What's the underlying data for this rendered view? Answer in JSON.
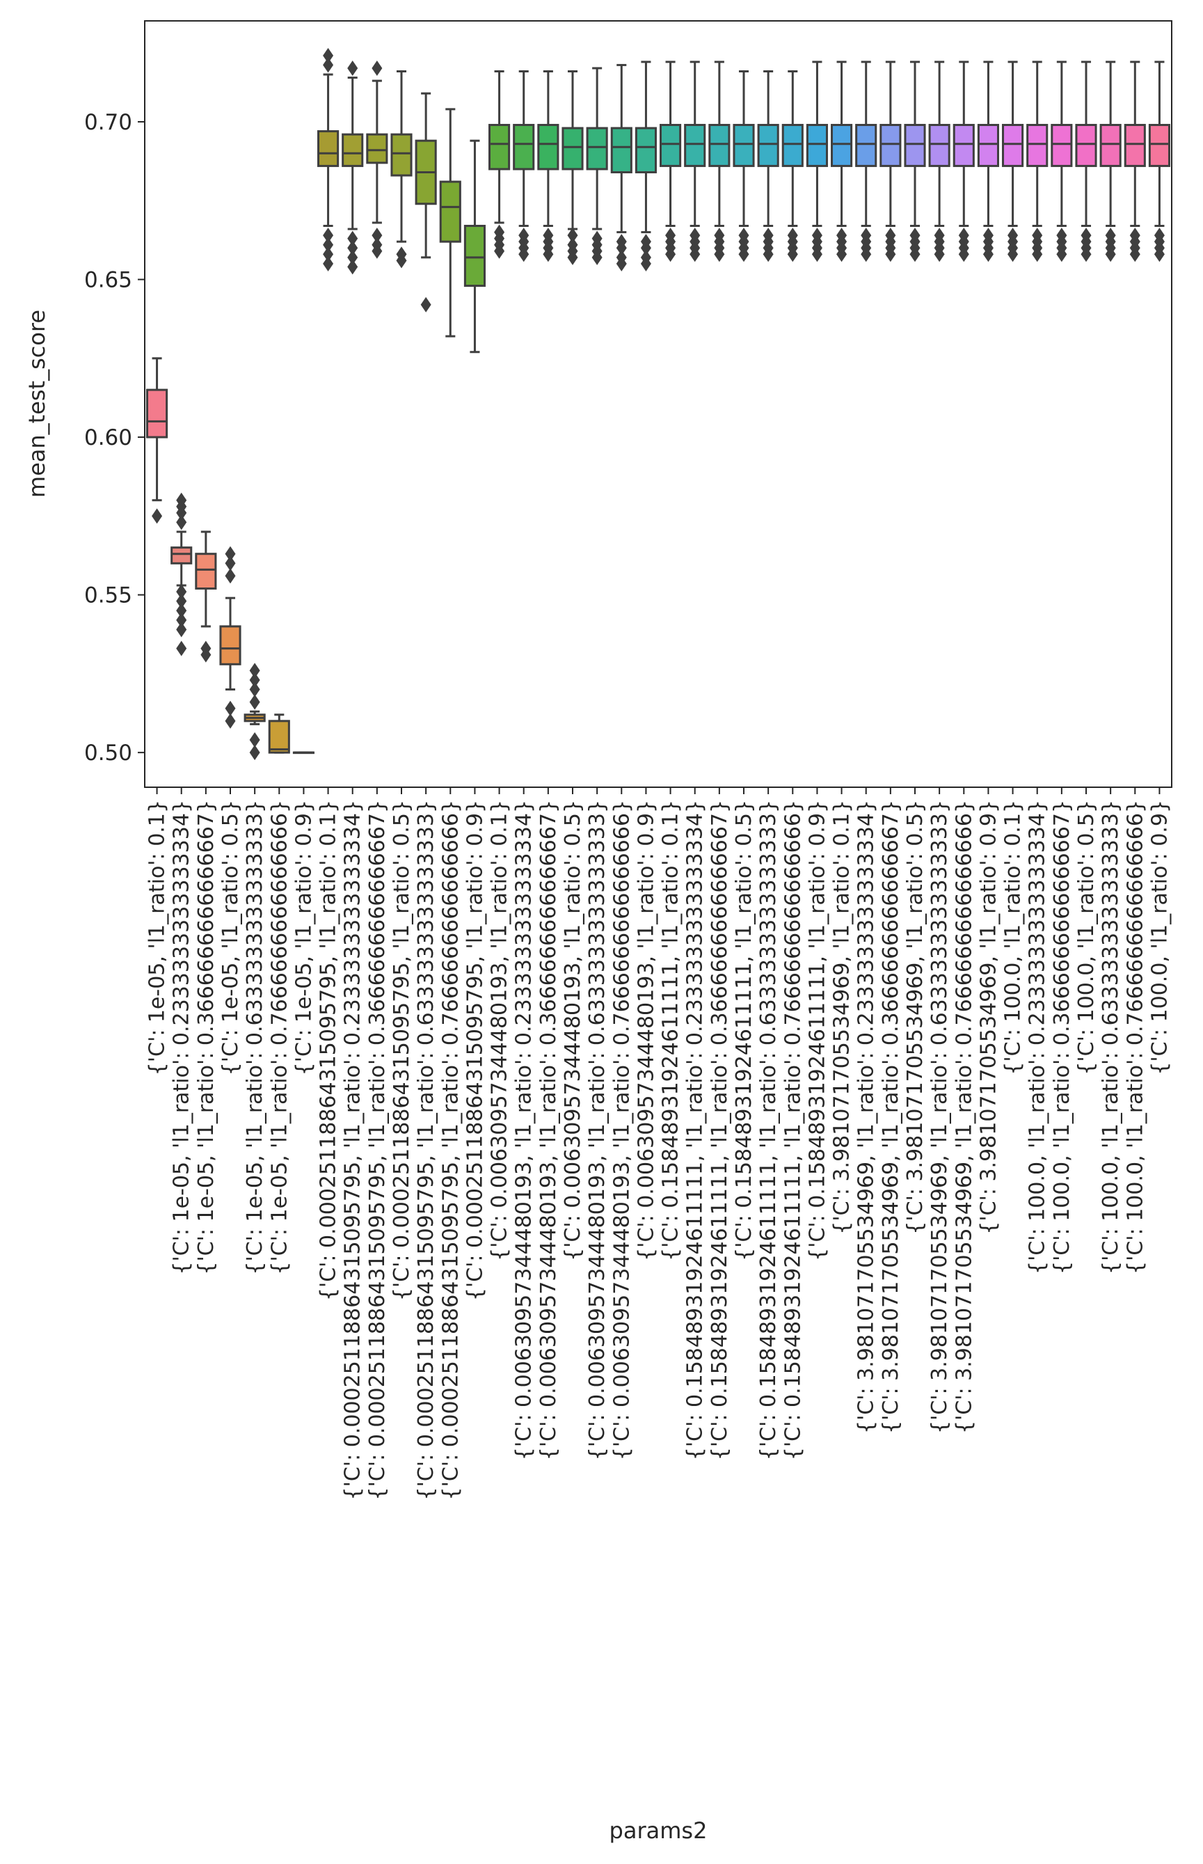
{
  "chart_data": {
    "type": "box",
    "title": "",
    "xlabel": "params2",
    "ylabel": "mean_test_score",
    "ylim": [
      0.489,
      0.732
    ],
    "yticks": [
      "0.50",
      "0.55",
      "0.60",
      "0.65",
      "0.70"
    ],
    "ytick_values": [
      0.5,
      0.55,
      0.6,
      0.65,
      0.7
    ],
    "grid": false,
    "legend": "none",
    "categories": [
      "{'C': 1e-05, 'l1_ratio': 0.1}",
      "{'C': 1e-05, 'l1_ratio': 0.2333333333333334}",
      "{'C': 1e-05, 'l1_ratio': 0.3666666666666667}",
      "{'C': 1e-05, 'l1_ratio': 0.5}",
      "{'C': 1e-05, 'l1_ratio': 0.6333333333333333}",
      "{'C': 1e-05, 'l1_ratio': 0.7666666666666666}",
      "{'C': 1e-05, 'l1_ratio': 0.9}",
      "{'C': 0.00025118864315095795, 'l1_ratio': 0.1}",
      "{'C': 0.00025118864315095795, 'l1_ratio': 0.2333333333333334}",
      "{'C': 0.00025118864315095795, 'l1_ratio': 0.3666666666666667}",
      "{'C': 0.00025118864315095795, 'l1_ratio': 0.5}",
      "{'C': 0.00025118864315095795, 'l1_ratio': 0.6333333333333333}",
      "{'C': 0.00025118864315095795, 'l1_ratio': 0.7666666666666666}",
      "{'C': 0.00025118864315095795, 'l1_ratio': 0.9}",
      "{'C': 0.00630957344480193, 'l1_ratio': 0.1}",
      "{'C': 0.00630957344480193, 'l1_ratio': 0.2333333333333334}",
      "{'C': 0.00630957344480193, 'l1_ratio': 0.3666666666666667}",
      "{'C': 0.00630957344480193, 'l1_ratio': 0.5}",
      "{'C': 0.00630957344480193, 'l1_ratio': 0.6333333333333333}",
      "{'C': 0.00630957344480193, 'l1_ratio': 0.7666666666666666}",
      "{'C': 0.00630957344480193, 'l1_ratio': 0.9}",
      "{'C': 0.15848931924611111, 'l1_ratio': 0.1}",
      "{'C': 0.15848931924611111, 'l1_ratio': 0.2333333333333334}",
      "{'C': 0.15848931924611111, 'l1_ratio': 0.3666666666666667}",
      "{'C': 0.15848931924611111, 'l1_ratio': 0.5}",
      "{'C': 0.15848931924611111, 'l1_ratio': 0.6333333333333333}",
      "{'C': 0.15848931924611111, 'l1_ratio': 0.7666666666666666}",
      "{'C': 0.15848931924611111, 'l1_ratio': 0.9}",
      "{'C': 3.981071705534969, 'l1_ratio': 0.1}",
      "{'C': 3.981071705534969, 'l1_ratio': 0.2333333333333334}",
      "{'C': 3.981071705534969, 'l1_ratio': 0.3666666666666667}",
      "{'C': 3.981071705534969, 'l1_ratio': 0.5}",
      "{'C': 3.981071705534969, 'l1_ratio': 0.6333333333333333}",
      "{'C': 3.981071705534969, 'l1_ratio': 0.7666666666666666}",
      "{'C': 3.981071705534969, 'l1_ratio': 0.9}",
      "{'C': 100.0, 'l1_ratio': 0.1}",
      "{'C': 100.0, 'l1_ratio': 0.2333333333333334}",
      "{'C': 100.0, 'l1_ratio': 0.3666666666666667}",
      "{'C': 100.0, 'l1_ratio': 0.5}",
      "{'C': 100.0, 'l1_ratio': 0.6333333333333333}",
      "{'C': 100.0, 'l1_ratio': 0.7666666666666666}",
      "{'C': 100.0, 'l1_ratio': 0.9}"
    ],
    "colors": [
      "#f37b8c",
      "#e8857c",
      "#f08c72",
      "#e6914f",
      "#d39a3a",
      "#c99e36",
      "#b49a33",
      "#a69b32",
      "#a19f33",
      "#9aa131",
      "#93a333",
      "#88a532",
      "#7aa832",
      "#6aaa38",
      "#5bae3f",
      "#4bb04f",
      "#3ab25f",
      "#36b16e",
      "#36b27b",
      "#36b287",
      "#37b292",
      "#37b29e",
      "#38b2a8",
      "#39b1b2",
      "#3ab0bc",
      "#3aaec5",
      "#3babcf",
      "#3da8d9",
      "#4ba3e2",
      "#6a9ee8",
      "#869aec",
      "#9d95ef",
      "#b08ff1",
      "#c289f1",
      "#d282ef",
      "#de7be9",
      "#e776e0",
      "#ee72d4",
      "#f170c6",
      "#f271b8",
      "#f373aa",
      "#f4769c"
    ],
    "boxes": [
      {
        "whislo": 0.58,
        "q1": 0.6,
        "med": 0.605,
        "q3": 0.615,
        "whishi": 0.625,
        "fliers": [
          0.575
        ]
      },
      {
        "whislo": 0.553,
        "q1": 0.56,
        "med": 0.563,
        "q3": 0.565,
        "whishi": 0.57,
        "fliers": [
          0.551,
          0.548,
          0.545,
          0.542,
          0.539,
          0.533,
          0.573,
          0.576,
          0.578,
          0.58
        ]
      },
      {
        "whislo": 0.54,
        "q1": 0.552,
        "med": 0.558,
        "q3": 0.563,
        "whishi": 0.57,
        "fliers": [
          0.533,
          0.531
        ]
      },
      {
        "whislo": 0.52,
        "q1": 0.528,
        "med": 0.533,
        "q3": 0.54,
        "whishi": 0.549,
        "fliers": [
          0.514,
          0.51,
          0.556,
          0.56,
          0.563
        ]
      },
      {
        "whislo": 0.509,
        "q1": 0.51,
        "med": 0.511,
        "q3": 0.512,
        "whishi": 0.513,
        "fliers": [
          0.504,
          0.5,
          0.516,
          0.52,
          0.523,
          0.526
        ]
      },
      {
        "whislo": 0.5,
        "q1": 0.5,
        "med": 0.501,
        "q3": 0.51,
        "whishi": 0.512,
        "fliers": []
      },
      {
        "whislo": 0.5,
        "q1": 0.5,
        "med": 0.5,
        "q3": 0.5,
        "whishi": 0.5,
        "fliers": []
      },
      {
        "whislo": 0.667,
        "q1": 0.686,
        "med": 0.69,
        "q3": 0.697,
        "whishi": 0.715,
        "fliers": [
          0.664,
          0.661,
          0.658,
          0.655,
          0.718,
          0.721
        ]
      },
      {
        "whislo": 0.666,
        "q1": 0.686,
        "med": 0.69,
        "q3": 0.696,
        "whishi": 0.714,
        "fliers": [
          0.663,
          0.66,
          0.657,
          0.654,
          0.717
        ]
      },
      {
        "whislo": 0.668,
        "q1": 0.687,
        "med": 0.691,
        "q3": 0.696,
        "whishi": 0.713,
        "fliers": [
          0.664,
          0.661,
          0.659,
          0.717
        ]
      },
      {
        "whislo": 0.662,
        "q1": 0.683,
        "med": 0.69,
        "q3": 0.696,
        "whishi": 0.716,
        "fliers": [
          0.658,
          0.656
        ]
      },
      {
        "whislo": 0.657,
        "q1": 0.674,
        "med": 0.684,
        "q3": 0.694,
        "whishi": 0.709,
        "fliers": [
          0.642
        ]
      },
      {
        "whislo": 0.632,
        "q1": 0.662,
        "med": 0.673,
        "q3": 0.681,
        "whishi": 0.704,
        "fliers": []
      },
      {
        "whislo": 0.627,
        "q1": 0.648,
        "med": 0.657,
        "q3": 0.667,
        "whishi": 0.694,
        "fliers": []
      },
      {
        "whislo": 0.668,
        "q1": 0.685,
        "med": 0.693,
        "q3": 0.699,
        "whishi": 0.716,
        "fliers": [
          0.665,
          0.663,
          0.661,
          0.659
        ]
      },
      {
        "whislo": 0.667,
        "q1": 0.685,
        "med": 0.693,
        "q3": 0.699,
        "whishi": 0.716,
        "fliers": [
          0.664,
          0.662,
          0.66,
          0.658
        ]
      },
      {
        "whislo": 0.667,
        "q1": 0.685,
        "med": 0.693,
        "q3": 0.699,
        "whishi": 0.716,
        "fliers": [
          0.664,
          0.662,
          0.66,
          0.658
        ]
      },
      {
        "whislo": 0.666,
        "q1": 0.685,
        "med": 0.692,
        "q3": 0.698,
        "whishi": 0.716,
        "fliers": [
          0.664,
          0.661,
          0.659,
          0.657
        ]
      },
      {
        "whislo": 0.666,
        "q1": 0.685,
        "med": 0.692,
        "q3": 0.698,
        "whishi": 0.717,
        "fliers": [
          0.663,
          0.661,
          0.659,
          0.657
        ]
      },
      {
        "whislo": 0.665,
        "q1": 0.684,
        "med": 0.692,
        "q3": 0.698,
        "whishi": 0.718,
        "fliers": [
          0.662,
          0.66,
          0.657,
          0.655
        ]
      },
      {
        "whislo": 0.665,
        "q1": 0.684,
        "med": 0.692,
        "q3": 0.698,
        "whishi": 0.719,
        "fliers": [
          0.662,
          0.66,
          0.657,
          0.655
        ]
      },
      {
        "whislo": 0.667,
        "q1": 0.686,
        "med": 0.693,
        "q3": 0.699,
        "whishi": 0.719,
        "fliers": [
          0.664,
          0.662,
          0.66,
          0.658
        ]
      },
      {
        "whislo": 0.667,
        "q1": 0.686,
        "med": 0.693,
        "q3": 0.699,
        "whishi": 0.719,
        "fliers": [
          0.664,
          0.662,
          0.66,
          0.658
        ]
      },
      {
        "whislo": 0.667,
        "q1": 0.686,
        "med": 0.693,
        "q3": 0.699,
        "whishi": 0.719,
        "fliers": [
          0.664,
          0.662,
          0.66,
          0.658
        ]
      },
      {
        "whislo": 0.667,
        "q1": 0.686,
        "med": 0.693,
        "q3": 0.699,
        "whishi": 0.716,
        "fliers": [
          0.664,
          0.662,
          0.66,
          0.658
        ]
      },
      {
        "whislo": 0.667,
        "q1": 0.686,
        "med": 0.693,
        "q3": 0.699,
        "whishi": 0.716,
        "fliers": [
          0.664,
          0.662,
          0.66,
          0.658
        ]
      },
      {
        "whislo": 0.667,
        "q1": 0.686,
        "med": 0.693,
        "q3": 0.699,
        "whishi": 0.716,
        "fliers": [
          0.664,
          0.662,
          0.66,
          0.658
        ]
      },
      {
        "whislo": 0.667,
        "q1": 0.686,
        "med": 0.693,
        "q3": 0.699,
        "whishi": 0.719,
        "fliers": [
          0.664,
          0.662,
          0.66,
          0.658
        ]
      },
      {
        "whislo": 0.667,
        "q1": 0.686,
        "med": 0.693,
        "q3": 0.699,
        "whishi": 0.719,
        "fliers": [
          0.664,
          0.662,
          0.66,
          0.658
        ]
      },
      {
        "whislo": 0.667,
        "q1": 0.686,
        "med": 0.693,
        "q3": 0.699,
        "whishi": 0.719,
        "fliers": [
          0.664,
          0.662,
          0.66,
          0.658
        ]
      },
      {
        "whislo": 0.667,
        "q1": 0.686,
        "med": 0.693,
        "q3": 0.699,
        "whishi": 0.719,
        "fliers": [
          0.664,
          0.662,
          0.66,
          0.658
        ]
      },
      {
        "whislo": 0.667,
        "q1": 0.686,
        "med": 0.693,
        "q3": 0.699,
        "whishi": 0.719,
        "fliers": [
          0.664,
          0.662,
          0.66,
          0.658
        ]
      },
      {
        "whislo": 0.667,
        "q1": 0.686,
        "med": 0.693,
        "q3": 0.699,
        "whishi": 0.719,
        "fliers": [
          0.664,
          0.662,
          0.66,
          0.658
        ]
      },
      {
        "whislo": 0.667,
        "q1": 0.686,
        "med": 0.693,
        "q3": 0.699,
        "whishi": 0.719,
        "fliers": [
          0.664,
          0.662,
          0.66,
          0.658
        ]
      },
      {
        "whislo": 0.667,
        "q1": 0.686,
        "med": 0.693,
        "q3": 0.699,
        "whishi": 0.719,
        "fliers": [
          0.664,
          0.662,
          0.66,
          0.658
        ]
      },
      {
        "whislo": 0.667,
        "q1": 0.686,
        "med": 0.693,
        "q3": 0.699,
        "whishi": 0.719,
        "fliers": [
          0.664,
          0.662,
          0.66,
          0.658
        ]
      },
      {
        "whislo": 0.667,
        "q1": 0.686,
        "med": 0.693,
        "q3": 0.699,
        "whishi": 0.719,
        "fliers": [
          0.664,
          0.662,
          0.66,
          0.658
        ]
      },
      {
        "whislo": 0.667,
        "q1": 0.686,
        "med": 0.693,
        "q3": 0.699,
        "whishi": 0.719,
        "fliers": [
          0.664,
          0.662,
          0.66,
          0.658
        ]
      },
      {
        "whislo": 0.667,
        "q1": 0.686,
        "med": 0.693,
        "q3": 0.699,
        "whishi": 0.719,
        "fliers": [
          0.664,
          0.662,
          0.66,
          0.658
        ]
      },
      {
        "whislo": 0.667,
        "q1": 0.686,
        "med": 0.693,
        "q3": 0.699,
        "whishi": 0.719,
        "fliers": [
          0.664,
          0.662,
          0.66,
          0.658
        ]
      },
      {
        "whislo": 0.667,
        "q1": 0.686,
        "med": 0.693,
        "q3": 0.699,
        "whishi": 0.719,
        "fliers": [
          0.664,
          0.662,
          0.66,
          0.658
        ]
      },
      {
        "whislo": 0.667,
        "q1": 0.686,
        "med": 0.693,
        "q3": 0.699,
        "whishi": 0.719,
        "fliers": [
          0.664,
          0.662,
          0.66,
          0.658
        ]
      }
    ]
  }
}
